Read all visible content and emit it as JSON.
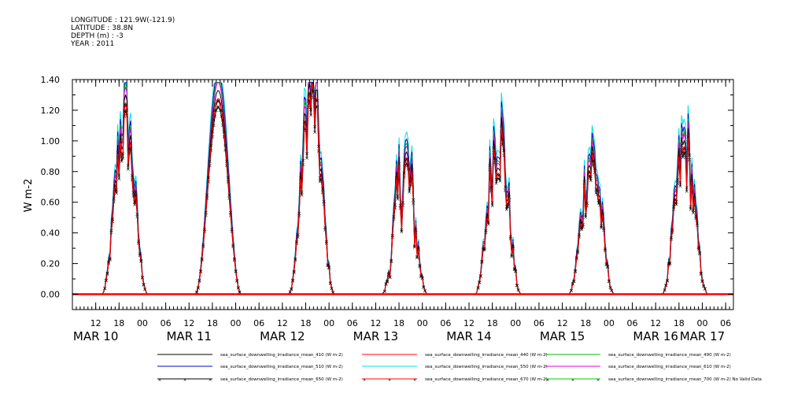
{
  "header": {
    "lines": [
      "LONGITUDE : 121.9W(-121.9)",
      "LATITUDE : 38.8N",
      "DEPTH (m) : -3",
      "YEAR : 2011"
    ]
  },
  "chart_data": {
    "type": "line",
    "ylabel": "W m-2",
    "ylim": [
      -0.1,
      1.4
    ],
    "yticks": [
      0.0,
      0.2,
      0.4,
      0.6,
      0.8,
      1.0,
      1.2,
      1.4
    ],
    "ytick_labels": [
      "0.00",
      "0.20",
      "0.40",
      "0.60",
      "0.80",
      "1.00",
      "1.20",
      "1.40"
    ],
    "x_hours_start": "2011-03-10 06:00",
    "x_hours_end": "2011-03-17 08:00",
    "hour_tick_labels": [
      {
        "t": "2011-03-10 12:00",
        "label": "12"
      },
      {
        "t": "2011-03-10 18:00",
        "label": "18"
      },
      {
        "t": "2011-03-11 00:00",
        "label": "00"
      },
      {
        "t": "2011-03-11 06:00",
        "label": "06"
      },
      {
        "t": "2011-03-11 12:00",
        "label": "12"
      },
      {
        "t": "2011-03-11 18:00",
        "label": "18"
      },
      {
        "t": "2011-03-12 00:00",
        "label": "00"
      },
      {
        "t": "2011-03-12 06:00",
        "label": "06"
      },
      {
        "t": "2011-03-12 12:00",
        "label": "12"
      },
      {
        "t": "2011-03-12 18:00",
        "label": "18"
      },
      {
        "t": "2011-03-13 00:00",
        "label": "00"
      },
      {
        "t": "2011-03-13 06:00",
        "label": "06"
      },
      {
        "t": "2011-03-13 12:00",
        "label": "12"
      },
      {
        "t": "2011-03-13 18:00",
        "label": "18"
      },
      {
        "t": "2011-03-14 00:00",
        "label": "00"
      },
      {
        "t": "2011-03-14 06:00",
        "label": "06"
      },
      {
        "t": "2011-03-14 12:00",
        "label": "12"
      },
      {
        "t": "2011-03-14 18:00",
        "label": "18"
      },
      {
        "t": "2011-03-15 00:00",
        "label": "00"
      },
      {
        "t": "2011-03-15 06:00",
        "label": "06"
      },
      {
        "t": "2011-03-15 12:00",
        "label": "12"
      },
      {
        "t": "2011-03-15 18:00",
        "label": "18"
      },
      {
        "t": "2011-03-16 00:00",
        "label": "00"
      },
      {
        "t": "2011-03-16 06:00",
        "label": "06"
      },
      {
        "t": "2011-03-16 12:00",
        "label": "12"
      },
      {
        "t": "2011-03-16 18:00",
        "label": "18"
      },
      {
        "t": "2011-03-17 00:00",
        "label": "00"
      },
      {
        "t": "2011-03-17 06:00",
        "label": "06"
      }
    ],
    "day_labels": [
      {
        "t": "2011-03-10 12:00",
        "label": "MAR 10"
      },
      {
        "t": "2011-03-11 12:00",
        "label": "MAR 11"
      },
      {
        "t": "2011-03-12 12:00",
        "label": "MAR 12"
      },
      {
        "t": "2011-03-13 12:00",
        "label": "MAR 13"
      },
      {
        "t": "2011-03-14 12:00",
        "label": "MAR 14"
      },
      {
        "t": "2011-03-15 12:00",
        "label": "MAR 15"
      },
      {
        "t": "2011-03-16 12:00",
        "label": "MAR 16"
      },
      {
        "t": "2011-03-17 00:00",
        "label": "MAR 17"
      }
    ],
    "days": [
      {
        "date": "2011-03-10",
        "peak": 1.1,
        "noise": 0.22
      },
      {
        "date": "2011-03-11",
        "peak": 1.33,
        "noise": 0.0
      },
      {
        "date": "2011-03-12",
        "peak": 1.3,
        "noise": 0.2
      },
      {
        "date": "2011-03-13",
        "peak": 0.78,
        "noise": 0.45
      },
      {
        "date": "2011-03-14",
        "peak": 1.02,
        "noise": 0.3
      },
      {
        "date": "2011-03-15",
        "peak": 0.85,
        "noise": 0.28
      },
      {
        "date": "2011-03-16",
        "peak": 0.92,
        "noise": 0.26
      }
    ],
    "series": [
      {
        "name": "sea_surface_downwelling_irradiance_mean_410 (W m-2)",
        "color": "#000000",
        "scale": 1.0,
        "marker": false
      },
      {
        "name": "sea_surface_downwelling_irradiance_mean_440 (W m-2)",
        "color": "#ff0000",
        "scale": 0.96,
        "marker": false
      },
      {
        "name": "sea_surface_downwelling_irradiance_mean_490 (W m-2)",
        "color": "#00bb00",
        "scale": 1.06,
        "marker": false
      },
      {
        "name": "sea_surface_downwelling_irradiance_mean_510 (W m-2)",
        "color": "#0000cc",
        "scale": 1.09,
        "marker": false
      },
      {
        "name": "sea_surface_downwelling_irradiance_mean_550 (W m-2)",
        "color": "#00e0e0",
        "scale": 1.14,
        "marker": false
      },
      {
        "name": "sea_surface_downwelling_irradiance_mean_610 (W m-2)",
        "color": "#e000e0",
        "scale": 1.04,
        "marker": false
      },
      {
        "name": "sea_surface_downwelling_irradiance_mean_650 (W m-2)",
        "color": "#000000",
        "scale": 0.92,
        "marker": true
      },
      {
        "name": "sea_surface_downwelling_irradiance_mean_670 (W m-2)",
        "color": "#ff0000",
        "scale": 0.95,
        "marker": true
      },
      {
        "name": "sea_surface_downwelling_irradiance_mean_700 (W m-2) No Valid Data",
        "color": "#00cc00",
        "scale": 0,
        "marker": true
      }
    ]
  }
}
